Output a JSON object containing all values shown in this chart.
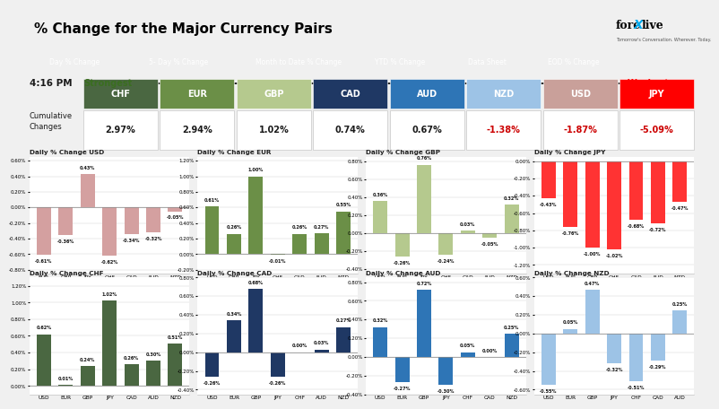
{
  "title": "% Change for the Major Currency Pairs",
  "nav_items": [
    "Day % Change",
    "5- Day % Change",
    "Month to Date % Change",
    "YTD % Change",
    "Data Sheet",
    "EOD % Change"
  ],
  "time": "4:16 PM",
  "currency_colors": {
    "CHF": "#4a6741",
    "EUR": "#6b8f47",
    "GBP": "#b5c98e",
    "CAD": "#1f3864",
    "AUD": "#2e75b6",
    "NZD": "#9dc3e6",
    "USD": "#c9a09a",
    "JPY": "#ff0000"
  },
  "currencies_order": [
    "CHF",
    "EUR",
    "GBP",
    "CAD",
    "AUD",
    "NZD",
    "USD",
    "JPY"
  ],
  "cum_vals": {
    "CHF": 2.97,
    "EUR": 2.94,
    "GBP": 1.02,
    "CAD": 0.74,
    "AUD": 0.67,
    "NZD": -1.38,
    "USD": -1.87,
    "JPY": -5.09
  },
  "subplots": [
    {
      "title": "Daily % Change USD",
      "categories": [
        "EUR",
        "GBP",
        "JPY",
        "CHF",
        "CAD",
        "AUD",
        "NZD"
      ],
      "values": [
        -0.61,
        -0.36,
        0.43,
        -0.62,
        -0.34,
        -0.32,
        -0.05
      ],
      "color": "#d4a0a0",
      "ylim": [
        -0.85,
        0.65
      ],
      "yticks": [
        -0.8,
        -0.6,
        -0.4,
        -0.2,
        0.0,
        0.2,
        0.4,
        0.6
      ]
    },
    {
      "title": "Daily % Change EUR",
      "categories": [
        "USD",
        "GBP",
        "JPY",
        "CHF",
        "CAD",
        "AUD",
        "NZD"
      ],
      "values": [
        0.61,
        0.26,
        1.0,
        -0.01,
        0.26,
        0.27,
        0.55
      ],
      "color": "#6b8f47",
      "ylim": [
        -0.25,
        1.25
      ],
      "yticks": [
        -0.2,
        0.0,
        0.2,
        0.4,
        0.6,
        0.8,
        1.0,
        1.2
      ]
    },
    {
      "title": "Daily % Change GBP",
      "categories": [
        "USD",
        "EUR",
        "JPY",
        "CHF",
        "CAD",
        "AUD",
        "NZD"
      ],
      "values": [
        0.36,
        -0.26,
        0.76,
        -0.24,
        0.03,
        -0.05,
        0.32
      ],
      "color": "#b5c98e",
      "ylim": [
        -0.45,
        0.85
      ],
      "yticks": [
        -0.4,
        -0.2,
        0.0,
        0.2,
        0.4,
        0.6,
        0.8
      ]
    },
    {
      "title": "Daily % Change JPY",
      "categories": [
        "USD",
        "EUR",
        "GBP",
        "CHF",
        "CAD",
        "AUD",
        "NZD"
      ],
      "values": [
        -0.43,
        -0.76,
        -1.0,
        -1.02,
        -0.68,
        -0.72,
        -0.47
      ],
      "color": "#ff3333",
      "ylim": [
        -1.3,
        0.05
      ],
      "yticks": [
        -1.2,
        -1.0,
        -0.8,
        -0.6,
        -0.4,
        -0.2,
        0.0
      ]
    },
    {
      "title": "Daily % Change CHF",
      "categories": [
        "USD",
        "EUR",
        "GBP",
        "JPY",
        "CAD",
        "AUD",
        "NZD"
      ],
      "values": [
        0.62,
        0.01,
        0.24,
        1.02,
        0.26,
        0.3,
        0.51
      ],
      "color": "#4a6741",
      "ylim": [
        -0.1,
        1.3
      ],
      "yticks": [
        0.0,
        0.2,
        0.4,
        0.6,
        0.8,
        1.0,
        1.2
      ]
    },
    {
      "title": "Daily % Change CAD",
      "categories": [
        "USD",
        "EUR",
        "GBP",
        "JPY",
        "CHF",
        "AUD",
        "NZD"
      ],
      "values": [
        -0.26,
        0.34,
        0.68,
        -0.26,
        0.0,
        0.03,
        0.27
      ],
      "color": "#1f3864",
      "ylim": [
        -0.45,
        0.8
      ],
      "yticks": [
        -0.4,
        -0.2,
        0.0,
        0.2,
        0.4,
        0.6,
        0.8
      ]
    },
    {
      "title": "Daily % Change AUD",
      "categories": [
        "USD",
        "EUR",
        "GBP",
        "JPY",
        "CHF",
        "CAD",
        "NZD"
      ],
      "values": [
        0.32,
        -0.27,
        0.72,
        -0.3,
        0.05,
        0.0,
        0.25
      ],
      "color": "#2e75b6",
      "ylim": [
        -0.4,
        0.85
      ],
      "yticks": [
        -0.4,
        -0.2,
        0.0,
        0.2,
        0.4,
        0.6,
        0.8
      ]
    },
    {
      "title": "Daily % Change NZD",
      "categories": [
        "USD",
        "EUR",
        "GBP",
        "JPY",
        "CHF",
        "CAD",
        "AUD"
      ],
      "values": [
        -0.55,
        0.05,
        0.47,
        -0.32,
        -0.51,
        -0.29,
        0.25
      ],
      "color": "#9dc3e6",
      "ylim": [
        -0.65,
        0.6
      ],
      "yticks": [
        -0.6,
        -0.4,
        -0.2,
        0.0,
        0.2,
        0.4,
        0.6
      ]
    }
  ],
  "bg_color": "#f0f0f0",
  "title_bar_color": "white",
  "nav_bar_color": "#1a1a1a",
  "summary_bg": "#efefef"
}
